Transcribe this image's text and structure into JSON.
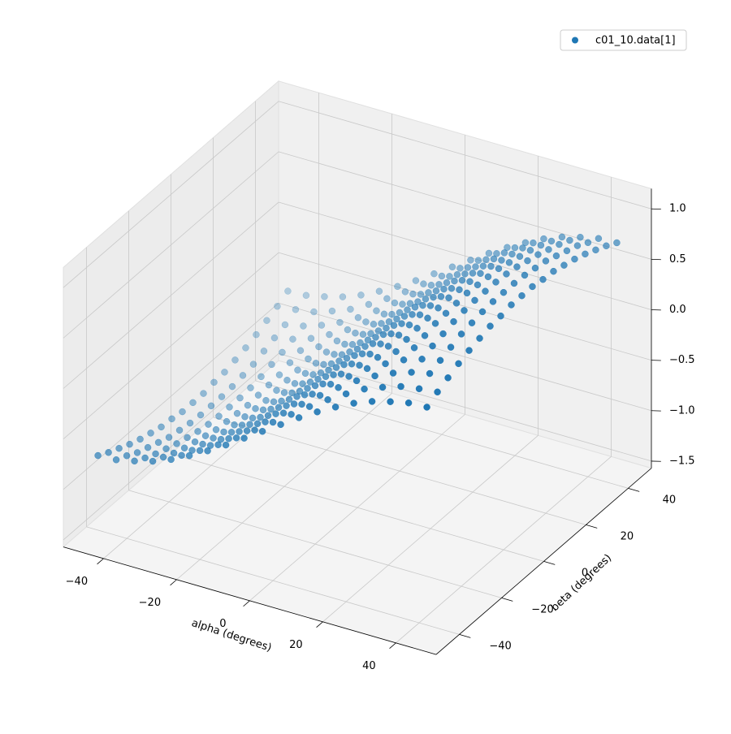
{
  "chart_data": {
    "type": "scatter3d",
    "xlabel": "alpha (degrees)",
    "ylabel": "beta (degrees)",
    "x": [
      -45,
      -40,
      -35,
      -30,
      -25,
      -20,
      -15,
      -10,
      -5,
      0,
      5,
      10,
      15,
      20,
      25,
      30,
      35,
      40,
      45
    ],
    "y": [
      -45,
      -40,
      -35,
      -30,
      -25,
      -20,
      -15,
      -10,
      -5,
      0,
      5,
      10,
      15,
      20,
      25,
      30,
      35,
      40,
      45
    ],
    "series": [
      {
        "name": "c01_10.data[1]",
        "color": "#1f77b4",
        "values": [
          [
            -0.71,
            -0.7,
            -0.66,
            -0.61,
            -0.54,
            -0.45,
            -0.35,
            -0.24,
            -0.12,
            0,
            0.12,
            0.24,
            0.35,
            0.45,
            0.54,
            0.61,
            0.66,
            0.7,
            0.71
          ],
          [
            -0.77,
            -0.75,
            -0.72,
            -0.66,
            -0.59,
            -0.49,
            -0.38,
            -0.26,
            -0.13,
            0,
            0.13,
            0.26,
            0.38,
            0.49,
            0.59,
            0.66,
            0.72,
            0.75,
            0.77
          ],
          [
            -0.82,
            -0.81,
            -0.77,
            -0.71,
            -0.63,
            -0.53,
            -0.41,
            -0.28,
            -0.14,
            0,
            0.14,
            0.28,
            0.41,
            0.53,
            0.63,
            0.71,
            0.77,
            0.81,
            0.82
          ],
          [
            -0.87,
            -0.85,
            -0.81,
            -0.75,
            -0.66,
            -0.56,
            -0.43,
            -0.3,
            -0.15,
            0,
            0.15,
            0.3,
            0.43,
            0.56,
            0.66,
            0.75,
            0.81,
            0.85,
            0.87
          ],
          [
            -0.91,
            -0.89,
            -0.85,
            -0.78,
            -0.69,
            -0.58,
            -0.45,
            -0.31,
            -0.16,
            0,
            0.16,
            0.31,
            0.45,
            0.58,
            0.69,
            0.78,
            0.85,
            0.89,
            0.91
          ],
          [
            -0.94,
            -0.93,
            -0.88,
            -0.81,
            -0.72,
            -0.6,
            -0.47,
            -0.32,
            -0.16,
            0,
            0.16,
            0.32,
            0.47,
            0.6,
            0.72,
            0.81,
            0.88,
            0.93,
            0.94
          ],
          [
            -0.97,
            -0.95,
            -0.91,
            -0.84,
            -0.74,
            -0.62,
            -0.48,
            -0.33,
            -0.17,
            0,
            0.17,
            0.33,
            0.48,
            0.62,
            0.74,
            0.84,
            0.91,
            0.95,
            0.97
          ],
          [
            -0.98,
            -0.97,
            -0.93,
            -0.85,
            -0.75,
            -0.63,
            -0.49,
            -0.34,
            -0.17,
            0,
            0.17,
            0.34,
            0.49,
            0.63,
            0.75,
            0.85,
            0.93,
            0.97,
            0.98
          ],
          [
            -1,
            -0.98,
            -0.94,
            -0.86,
            -0.76,
            -0.64,
            -0.5,
            -0.34,
            -0.17,
            0,
            0.17,
            0.34,
            0.5,
            0.64,
            0.76,
            0.86,
            0.94,
            0.98,
            1
          ],
          [
            -1,
            -0.98,
            -0.94,
            -0.87,
            -0.77,
            -0.64,
            -0.5,
            -0.34,
            -0.17,
            0,
            0.17,
            0.34,
            0.5,
            0.64,
            0.77,
            0.87,
            0.94,
            0.98,
            1
          ],
          [
            -1,
            -0.98,
            -0.94,
            -0.86,
            -0.76,
            -0.64,
            -0.5,
            -0.34,
            -0.17,
            0,
            0.17,
            0.34,
            0.5,
            0.64,
            0.76,
            0.86,
            0.94,
            0.98,
            1
          ],
          [
            -0.98,
            -0.97,
            -0.93,
            -0.85,
            -0.75,
            -0.63,
            -0.49,
            -0.34,
            -0.17,
            0,
            0.17,
            0.34,
            0.49,
            0.63,
            0.75,
            0.85,
            0.93,
            0.97,
            0.98
          ],
          [
            -0.97,
            -0.95,
            -0.91,
            -0.84,
            -0.74,
            -0.62,
            -0.48,
            -0.33,
            -0.17,
            0,
            0.17,
            0.33,
            0.48,
            0.62,
            0.74,
            0.84,
            0.91,
            0.95,
            0.97
          ],
          [
            -0.94,
            -0.93,
            -0.88,
            -0.81,
            -0.72,
            -0.6,
            -0.47,
            -0.32,
            -0.16,
            0,
            0.16,
            0.32,
            0.47,
            0.6,
            0.72,
            0.81,
            0.88,
            0.93,
            0.94
          ],
          [
            -0.91,
            -0.89,
            -0.85,
            -0.78,
            -0.69,
            -0.58,
            -0.45,
            -0.31,
            -0.16,
            0,
            0.16,
            0.31,
            0.45,
            0.58,
            0.69,
            0.78,
            0.85,
            0.89,
            0.91
          ],
          [
            -0.87,
            -0.85,
            -0.81,
            -0.75,
            -0.66,
            -0.56,
            -0.43,
            -0.3,
            -0.15,
            0,
            0.15,
            0.3,
            0.43,
            0.56,
            0.66,
            0.75,
            0.81,
            0.85,
            0.87
          ],
          [
            -0.82,
            -0.81,
            -0.77,
            -0.71,
            -0.63,
            -0.53,
            -0.41,
            -0.28,
            -0.14,
            0,
            0.14,
            0.28,
            0.41,
            0.53,
            0.63,
            0.71,
            0.77,
            0.81,
            0.82
          ],
          [
            -0.77,
            -0.75,
            -0.72,
            -0.66,
            -0.59,
            -0.49,
            -0.38,
            -0.26,
            -0.13,
            0,
            0.13,
            0.26,
            0.38,
            0.49,
            0.59,
            0.66,
            0.72,
            0.75,
            0.77
          ],
          [
            -0.71,
            -0.7,
            -0.66,
            -0.61,
            -0.54,
            -0.45,
            -0.35,
            -0.24,
            -0.12,
            0,
            0.12,
            0.24,
            0.35,
            0.45,
            0.54,
            0.61,
            0.66,
            0.7,
            0.71
          ]
        ]
      }
    ],
    "xlim": [
      -51,
      51
    ],
    "ylim": [
      -51,
      51
    ],
    "zlim": [
      -1.57,
      1.2
    ],
    "xticks": [
      {
        "value": -40,
        "label": "−40"
      },
      {
        "value": -20,
        "label": "−20"
      },
      0,
      20,
      40
    ],
    "yticks": [
      {
        "value": -40,
        "label": "−40"
      },
      {
        "value": -20,
        "label": "−20"
      },
      0,
      20,
      40
    ],
    "zticks": [
      {
        "value": -1.5,
        "label": "−1.5"
      },
      {
        "value": -1,
        "label": "−1.0"
      },
      {
        "value": -0.5,
        "label": "−0.5"
      },
      {
        "value": 0,
        "label": "0.0"
      },
      {
        "value": 0.5,
        "label": "0.5"
      },
      {
        "value": 1,
        "label": "1.0"
      }
    ],
    "grid": true,
    "legend": "upper right"
  }
}
